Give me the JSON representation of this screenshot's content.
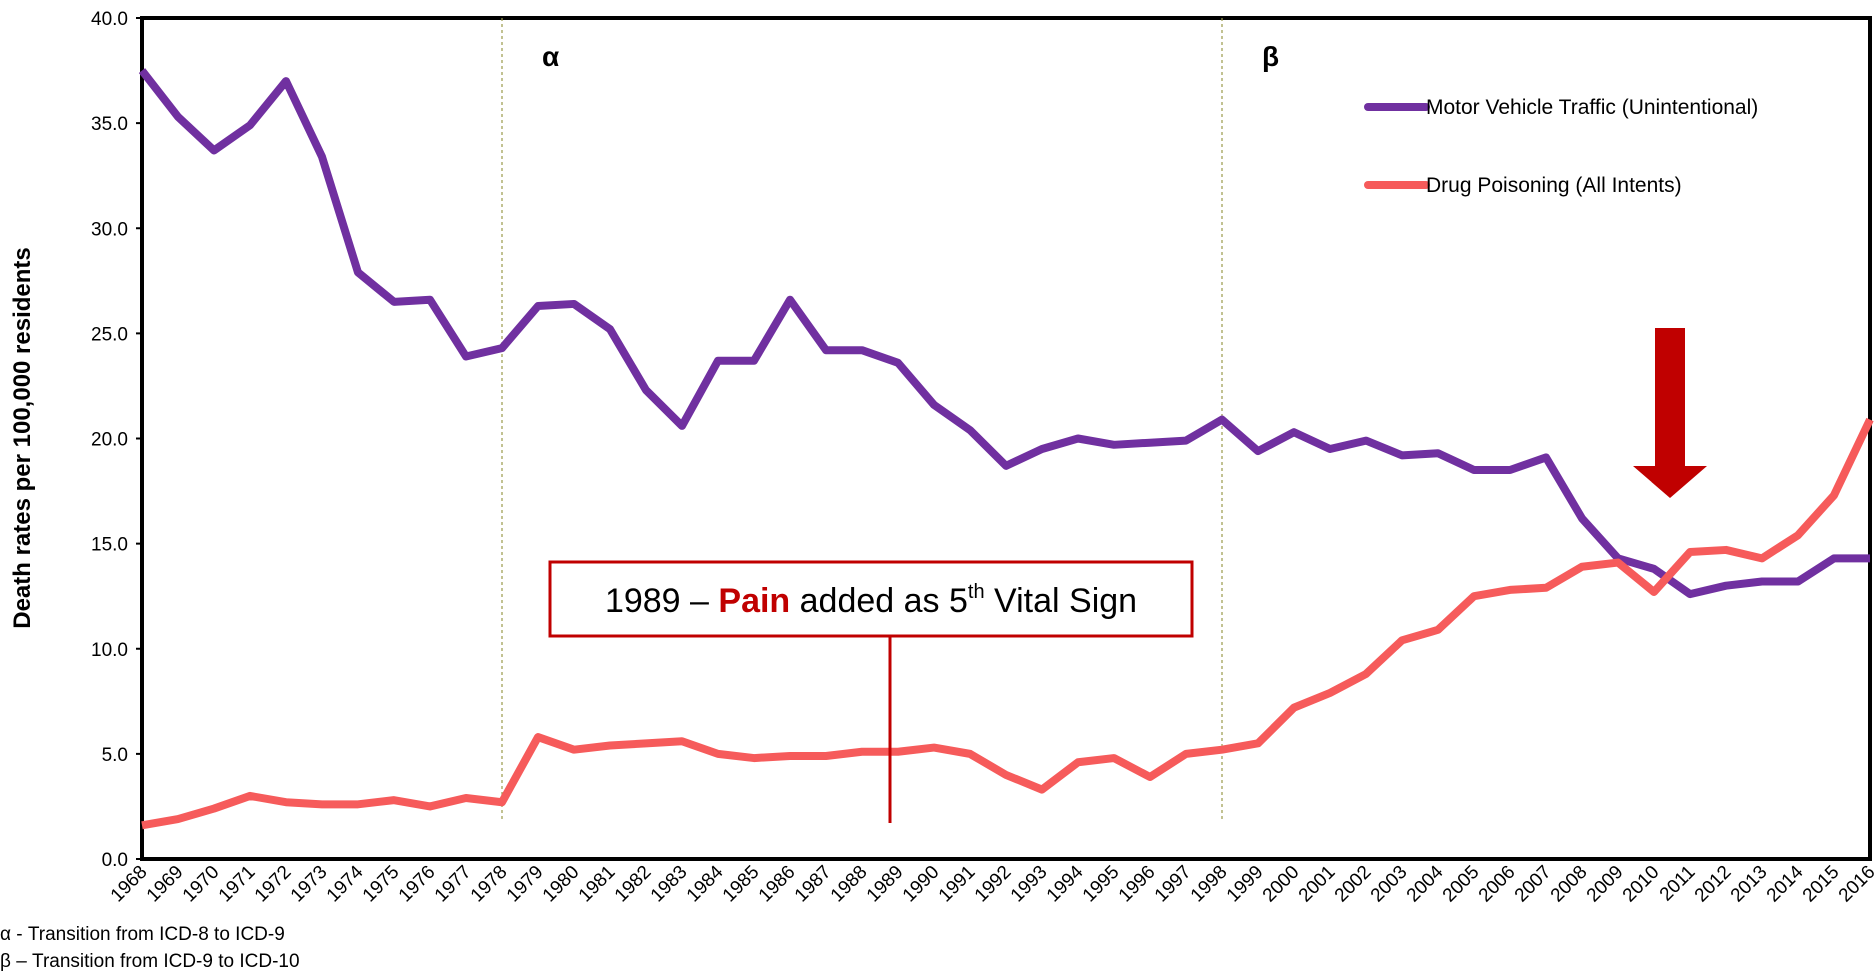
{
  "chart_data": {
    "type": "line",
    "y_label": "Death rates per 100,000 residents",
    "categories": [
      "1968",
      "1969",
      "1970",
      "1971",
      "1972",
      "1973",
      "1974",
      "1975",
      "1976",
      "1977",
      "1978",
      "1979",
      "1980",
      "1981",
      "1982",
      "1983",
      "1984",
      "1985",
      "1986",
      "1987",
      "1988",
      "1989",
      "1990",
      "1991",
      "1992",
      "1993",
      "1994",
      "1995",
      "1996",
      "1997",
      "1998",
      "1999",
      "2000",
      "2001",
      "2002",
      "2003",
      "2004",
      "2005",
      "2006",
      "2007",
      "2008",
      "2009",
      "2010",
      "2011",
      "2012",
      "2013",
      "2014",
      "2015",
      "2016"
    ],
    "series": [
      {
        "name": "Motor Vehicle Traffic  (Unintentional)",
        "color": "#7030a0",
        "values": [
          37.5,
          35.3,
          33.7,
          34.9,
          37.0,
          33.4,
          27.9,
          26.5,
          26.6,
          23.9,
          24.3,
          26.3,
          26.4,
          25.2,
          22.3,
          20.6,
          23.7,
          23.7,
          26.6,
          24.2,
          24.2,
          23.6,
          21.6,
          20.4,
          18.7,
          19.5,
          20.0,
          19.7,
          19.8,
          19.9,
          20.9,
          19.4,
          20.3,
          19.5,
          19.9,
          19.2,
          19.3,
          18.5,
          18.5,
          19.1,
          16.2,
          14.3,
          13.8,
          12.6,
          13.0,
          13.2,
          13.2,
          14.3,
          14.3
        ]
      },
      {
        "name": "Drug Poisoning (All Intents)",
        "color": "#f65b5b",
        "values": [
          1.6,
          1.9,
          2.4,
          3.0,
          2.7,
          2.6,
          2.6,
          2.8,
          2.5,
          2.9,
          2.7,
          5.8,
          5.2,
          5.4,
          5.5,
          5.6,
          5.0,
          4.8,
          4.9,
          4.9,
          5.1,
          5.1,
          5.3,
          5.0,
          4.0,
          3.3,
          4.6,
          4.8,
          3.9,
          5.0,
          5.2,
          5.5,
          7.2,
          7.9,
          8.8,
          10.4,
          10.9,
          12.5,
          12.8,
          12.9,
          13.9,
          14.1,
          12.7,
          14.6,
          14.7,
          14.3,
          15.4,
          17.3,
          20.9
        ]
      }
    ],
    "ylim": [
      0,
      40
    ],
    "yticks": [
      {
        "value": 0,
        "label": "0.0"
      },
      {
        "value": 5,
        "label": "5.0"
      },
      {
        "value": 10,
        "label": "10.0"
      },
      {
        "value": 15,
        "label": "15.0"
      },
      {
        "value": 20,
        "label": "20.0"
      },
      {
        "value": 25,
        "label": "25.0"
      },
      {
        "value": 30,
        "label": "30.0"
      },
      {
        "value": 35,
        "label": "35.0"
      },
      {
        "value": 40,
        "label": "40.0"
      }
    ],
    "legend": "upper right",
    "vlines": [
      {
        "x": "1978",
        "label": "α"
      },
      {
        "x": "1998",
        "label": "β"
      }
    ],
    "callout": {
      "x": "1989",
      "parts": [
        "1989 – ",
        "Pain",
        " added as 5",
        "th",
        " Vital Sign"
      ]
    },
    "footnotes": [
      "α - Transition from ICD-8 to ICD-9",
      "β – Transition from ICD-9 to ICD-10"
    ]
  }
}
